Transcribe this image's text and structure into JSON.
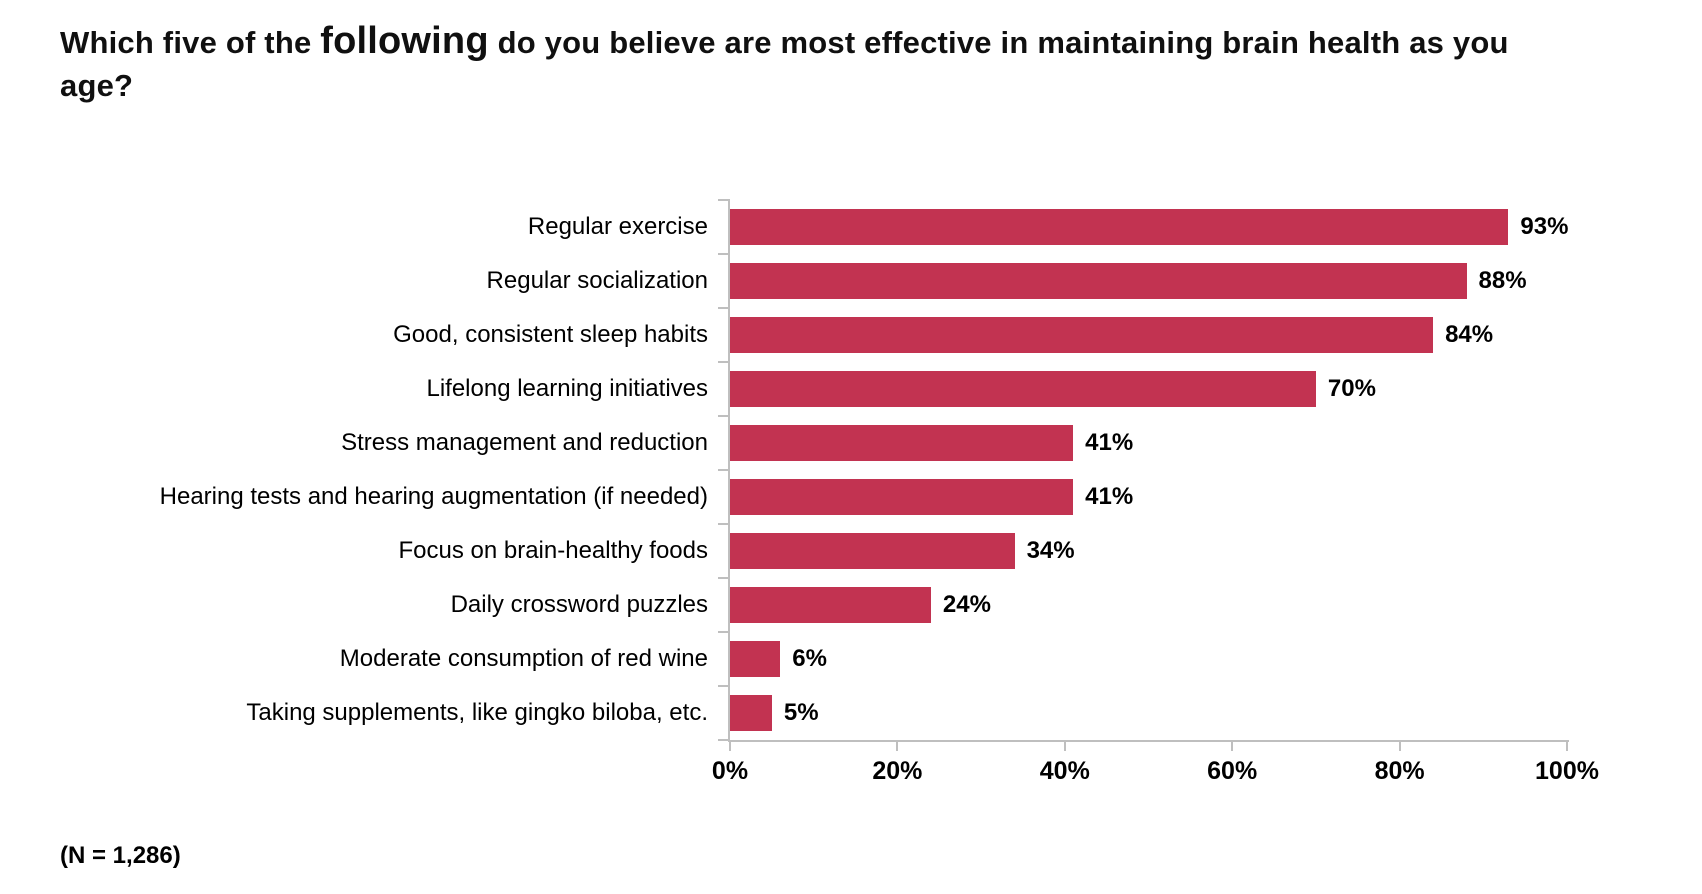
{
  "chart_data": {
    "type": "bar",
    "orientation": "horizontal",
    "title_full": "Which five of the following do you believe are most effective in maintaining brain health as you age?",
    "title_parts": {
      "before": "Which five of the ",
      "emphasis": "following",
      "after": " do you believe are most effective in maintaining brain health as you age?"
    },
    "categories": [
      "Regular exercise",
      "Regular socialization",
      "Good, consistent sleep habits",
      "Lifelong learning initiatives",
      "Stress management and reduction",
      "Hearing tests and hearing augmentation (if needed)",
      "Focus on brain-healthy foods",
      "Daily crossword puzzles",
      "Moderate consumption of red wine",
      "Taking supplements, like gingko biloba, etc."
    ],
    "values": [
      93,
      88,
      84,
      70,
      41,
      41,
      34,
      24,
      6,
      5
    ],
    "value_labels": [
      "93%",
      "88%",
      "84%",
      "70%",
      "41%",
      "41%",
      "34%",
      "24%",
      "6%",
      "5%"
    ],
    "xlim": [
      0,
      100
    ],
    "x_ticks": [
      "0%",
      "20%",
      "40%",
      "60%",
      "80%",
      "100%"
    ],
    "grid": "off",
    "legend": "none",
    "footnote": "(N = 1,286)",
    "colors": {
      "bar": "#C23351",
      "axis": "#BFBFBF",
      "text": "#000000"
    }
  }
}
